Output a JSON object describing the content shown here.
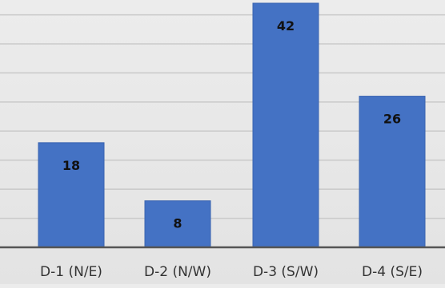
{
  "chart_data": {
    "type": "bar",
    "categories": [
      "D-1 (N/E)",
      "D-2 (N/W)",
      "D-3 (S/W)",
      "D-4 (S/E)"
    ],
    "values": [
      18,
      8,
      42,
      26
    ],
    "data_labels": [
      "18",
      "8",
      "42",
      "26"
    ],
    "title": "",
    "xlabel": "",
    "ylabel": "",
    "ylim": [
      0,
      42
    ],
    "grid": true,
    "gridline_step": 5,
    "legend": "none",
    "colors": {
      "bar": "#4472c4",
      "bar_edge": "#3a64b0",
      "grid": "#c9c9c9",
      "axis": "#555555",
      "background": "#e8e8e8"
    }
  }
}
